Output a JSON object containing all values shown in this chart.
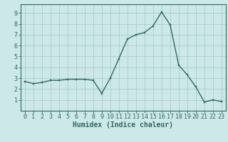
{
  "x": [
    0,
    1,
    2,
    3,
    4,
    5,
    6,
    7,
    8,
    9,
    10,
    11,
    12,
    13,
    14,
    15,
    16,
    17,
    18,
    19,
    20,
    21,
    22,
    23
  ],
  "y": [
    2.7,
    2.5,
    2.6,
    2.8,
    2.8,
    2.9,
    2.9,
    2.9,
    2.8,
    1.6,
    3.0,
    4.8,
    6.6,
    7.0,
    7.2,
    7.8,
    9.1,
    7.9,
    4.2,
    3.3,
    2.2,
    0.8,
    1.0,
    0.85
  ],
  "line_color": "#2e6b5e",
  "marker_color": "#2e6b5e",
  "bg_color": "#cce8e8",
  "grid_color": "#aacccc",
  "xlabel": "Humidex (Indice chaleur)",
  "xlabel_color": "#2e6b5e",
  "tick_color": "#2e6b5e",
  "xlim": [
    -0.5,
    23.5
  ],
  "ylim": [
    0,
    9.8
  ],
  "yticks": [
    1,
    2,
    3,
    4,
    5,
    6,
    7,
    8,
    9
  ],
  "xticks": [
    0,
    1,
    2,
    3,
    4,
    5,
    6,
    7,
    8,
    9,
    10,
    11,
    12,
    13,
    14,
    15,
    16,
    17,
    18,
    19,
    20,
    21,
    22,
    23
  ],
  "label_fontsize": 7,
  "tick_fontsize": 6
}
